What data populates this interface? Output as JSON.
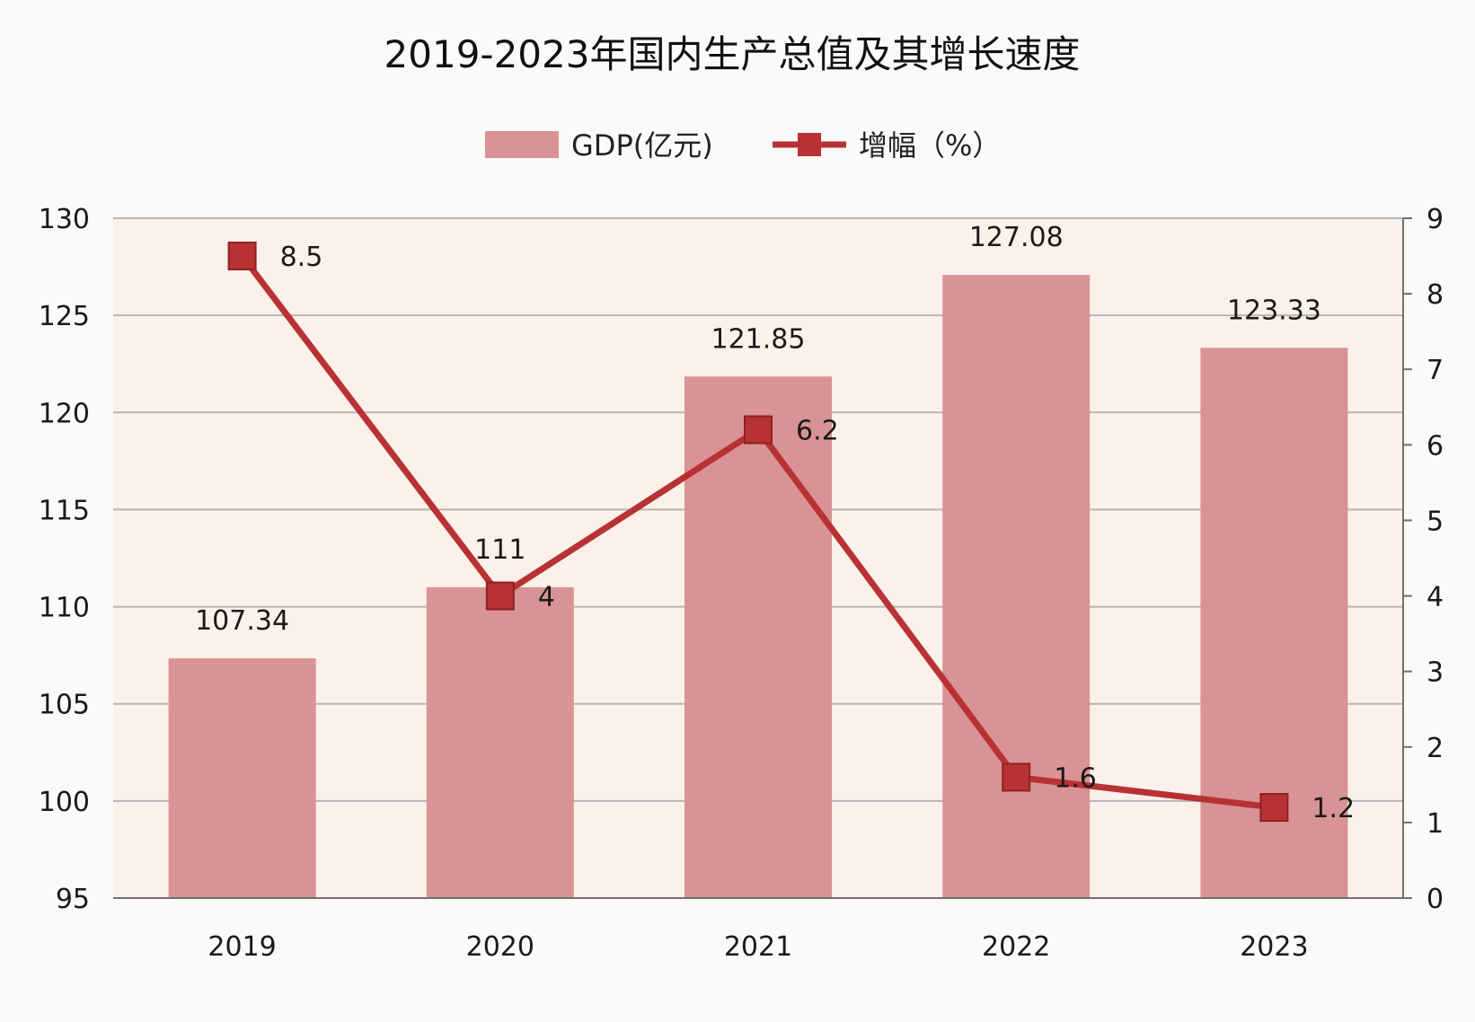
{
  "chart_data": {
    "type": "bar",
    "title": "2019-2023年国内生产总值及其增长速度",
    "categories": [
      "2019",
      "2020",
      "2021",
      "2022",
      "2023"
    ],
    "series": [
      {
        "name": "GDP(亿元)",
        "type": "bar",
        "axis": "left",
        "values": [
          107.34,
          111,
          121.85,
          127.08,
          123.33
        ],
        "data_labels": [
          "107.34",
          "111",
          "121.85",
          "127.08",
          "123.33"
        ]
      },
      {
        "name": "增幅（%）",
        "type": "line",
        "axis": "right",
        "values": [
          8.5,
          4,
          6.2,
          1.6,
          1.2
        ],
        "data_labels": [
          "8.5",
          "4",
          "6.2",
          "1.6",
          "1.2"
        ]
      }
    ],
    "y_left": {
      "min": 95,
      "max": 130,
      "ticks": [
        95,
        100,
        105,
        110,
        115,
        120,
        125,
        130
      ]
    },
    "y_right": {
      "min": 0,
      "max": 9,
      "ticks": [
        0,
        1,
        2,
        3,
        4,
        5,
        6,
        7,
        8,
        9
      ]
    },
    "legend_position": "top",
    "grid": true,
    "colors": {
      "bar": "#d99394",
      "line": "#b83234",
      "plot_background": "#fcf0ea",
      "grid": "#b5b5b5"
    }
  }
}
